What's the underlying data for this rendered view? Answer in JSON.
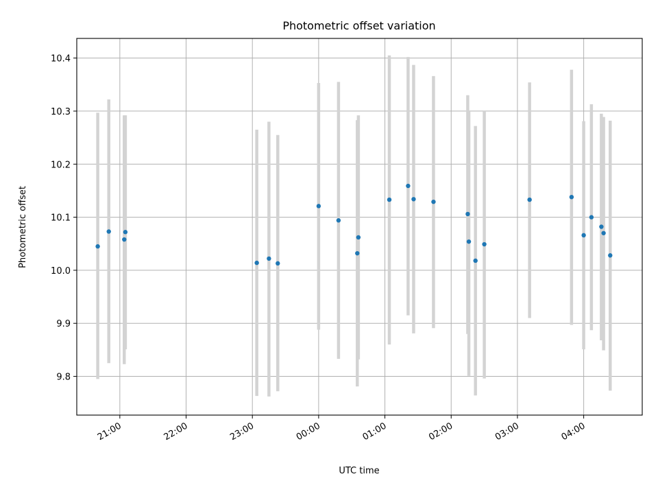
{
  "chart_data": {
    "type": "scatter",
    "title": "Photometric offset variation",
    "xlabel": "UTC time",
    "ylabel": "Photometric offset",
    "x_ticks": [
      "21:00",
      "22:00",
      "23:00",
      "00:00",
      "01:00",
      "02:00",
      "03:00",
      "04:00"
    ],
    "y_ticks": [
      "9.8",
      "9.9",
      "10.0",
      "10.1",
      "10.2",
      "10.3",
      "10.4"
    ],
    "x_tick_hours": [
      21,
      22,
      23,
      24,
      25,
      26,
      27,
      28
    ],
    "y_tick_values": [
      9.8,
      9.9,
      10.0,
      10.1,
      10.2,
      10.3,
      10.4
    ],
    "xlim": [
      "20:21",
      "04:53"
    ],
    "ylim": [
      9.727,
      10.437
    ],
    "grid": true,
    "colors": {
      "points": "#1f77b4",
      "errorbars": "#d3d3d3",
      "grid": "#b0b0b0"
    },
    "series": [
      {
        "points": [
          {
            "time": "20:40",
            "value": 10.045,
            "low": 9.795,
            "high": 10.297
          },
          {
            "time": "20:50",
            "value": 10.073,
            "low": 9.825,
            "high": 10.322
          },
          {
            "time": "21:04",
            "value": 10.058,
            "low": 9.823,
            "high": 10.292
          },
          {
            "time": "21:05",
            "value": 10.072,
            "low": 9.851,
            "high": 10.292
          },
          {
            "time": "23:04",
            "value": 10.014,
            "low": 9.763,
            "high": 10.265
          },
          {
            "time": "23:15",
            "value": 10.022,
            "low": 9.762,
            "high": 10.28
          },
          {
            "time": "23:23",
            "value": 10.013,
            "low": 9.772,
            "high": 10.255
          },
          {
            "time": "00:00",
            "value": 10.121,
            "low": 9.888,
            "high": 10.353
          },
          {
            "time": "00:18",
            "value": 10.094,
            "low": 9.833,
            "high": 10.355
          },
          {
            "time": "00:35",
            "value": 10.032,
            "low": 9.781,
            "high": 10.283
          },
          {
            "time": "00:36",
            "value": 10.062,
            "low": 9.832,
            "high": 10.292
          },
          {
            "time": "01:04",
            "value": 10.133,
            "low": 9.86,
            "high": 10.405
          },
          {
            "time": "01:21",
            "value": 10.159,
            "low": 9.915,
            "high": 10.402
          },
          {
            "time": "01:26",
            "value": 10.134,
            "low": 9.881,
            "high": 10.387
          },
          {
            "time": "01:44",
            "value": 10.129,
            "low": 9.891,
            "high": 10.366
          },
          {
            "time": "02:15",
            "value": 10.106,
            "low": 9.88,
            "high": 10.33
          },
          {
            "time": "02:16",
            "value": 10.054,
            "low": 9.801,
            "high": 10.3
          },
          {
            "time": "02:22",
            "value": 10.018,
            "low": 9.764,
            "high": 10.272
          },
          {
            "time": "02:30",
            "value": 10.049,
            "low": 9.796,
            "high": 10.3
          },
          {
            "time": "03:11",
            "value": 10.133,
            "low": 9.91,
            "high": 10.354
          },
          {
            "time": "03:49",
            "value": 10.138,
            "low": 9.897,
            "high": 10.378
          },
          {
            "time": "04:00",
            "value": 10.066,
            "low": 9.851,
            "high": 10.281
          },
          {
            "time": "04:07",
            "value": 10.1,
            "low": 9.887,
            "high": 10.313
          },
          {
            "time": "04:16",
            "value": 10.082,
            "low": 9.868,
            "high": 10.295
          },
          {
            "time": "04:18",
            "value": 10.07,
            "low": 9.849,
            "high": 10.289
          },
          {
            "time": "04:24",
            "value": 10.028,
            "low": 9.773,
            "high": 10.282
          }
        ]
      }
    ]
  }
}
